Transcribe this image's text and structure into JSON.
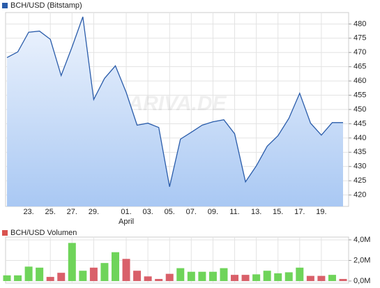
{
  "chart_data": [
    {
      "type": "line",
      "legend": "BCH/USD (Bitstamp)",
      "watermark": "ARIVA.DE",
      "annotation": "April",
      "categories": [
        null,
        null,
        "23.",
        null,
        "25.",
        null,
        "27.",
        null,
        "29.",
        null,
        null,
        "01.",
        null,
        "03.",
        null,
        "05.",
        null,
        "07.",
        null,
        "09.",
        null,
        "11.",
        null,
        "13.",
        null,
        "15.",
        null,
        "17.",
        null,
        "19.",
        null,
        null
      ],
      "series": [
        {
          "name": "BCH/USD (Bitstamp)",
          "color": "#2a5caa",
          "values": [
            468.2,
            470.2,
            477.1,
            477.5,
            474.6,
            461.9,
            471.9,
            482.5,
            453.5,
            460.9,
            465.3,
            456.0,
            444.5,
            445.2,
            443.7,
            422.9,
            439.6,
            442.0,
            444.5,
            445.7,
            446.4,
            441.5,
            424.6,
            430.2,
            437.1,
            440.8,
            446.9,
            455.7,
            445.2,
            441.0,
            445.4,
            445.4
          ]
        }
      ],
      "ylim": [
        416,
        484
      ],
      "yticks": [
        420,
        425,
        430,
        435,
        440,
        445,
        450,
        455,
        460,
        465,
        470,
        475,
        480
      ],
      "grid": true
    },
    {
      "type": "bar",
      "legend": "BCH/USD Volumen",
      "categories": [
        null,
        null,
        "23.",
        null,
        "25.",
        null,
        "27.",
        null,
        "29.",
        null,
        null,
        "01.",
        null,
        "03.",
        null,
        "05.",
        null,
        "07.",
        null,
        "09.",
        null,
        "11.",
        null,
        "13.",
        null,
        "15.",
        null,
        "17.",
        null,
        "19.",
        null,
        null
      ],
      "series": [
        {
          "name": "BCH/USD Volumen",
          "color": "#d9534f",
          "values": [
            550000,
            550000,
            1400000,
            1300000,
            400000,
            800000,
            3700000,
            1000000,
            1300000,
            1750000,
            2800000,
            2150000,
            1000000,
            450000,
            200000,
            700000,
            1250000,
            900000,
            900000,
            900000,
            1250000,
            600000,
            600000,
            650000,
            1000000,
            750000,
            850000,
            1300000,
            500000,
            500000,
            600000,
            200000
          ],
          "colors": [
            "#6fd45a",
            "#6fd45a",
            "#6fd45a",
            "#6fd45a",
            "#d9606a",
            "#d9606a",
            "#6fd45a",
            "#6fd45a",
            "#d9606a",
            "#6fd45a",
            "#6fd45a",
            "#d9606a",
            "#d9606a",
            "#d9606a",
            "#d9606a",
            "#d9606a",
            "#6fd45a",
            "#6fd45a",
            "#6fd45a",
            "#6fd45a",
            "#6fd45a",
            "#d9606a",
            "#d9606a",
            "#6fd45a",
            "#6fd45a",
            "#6fd45a",
            "#6fd45a",
            "#6fd45a",
            "#d9606a",
            "#d9606a",
            "#6fd45a",
            "#d9606a"
          ]
        }
      ],
      "ylim": [
        0,
        4200000
      ],
      "yticks": [
        {
          "value": 0,
          "label": "0,0M"
        },
        {
          "value": 2000000,
          "label": "2,0M"
        },
        {
          "value": 4000000,
          "label": "4,0M"
        }
      ],
      "grid": true
    }
  ]
}
